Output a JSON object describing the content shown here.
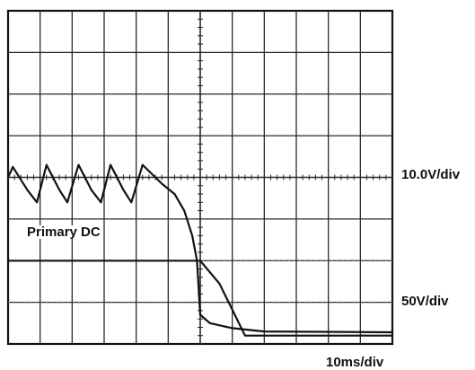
{
  "chart_data": {
    "type": "line",
    "title": "",
    "grid": true,
    "divisions": {
      "horizontal": 12,
      "vertical": 8
    },
    "scales": {
      "ch1": "10.0V/div",
      "ch2": "50V/div",
      "time": "10ms/div"
    },
    "annotations": [
      "Primary DC"
    ],
    "series": [
      {
        "channel": "ch1",
        "unit": "div",
        "x": [
          0,
          6.0,
          6.6,
          7.4,
          12
        ],
        "y": [
          -2,
          -2,
          -2.55,
          -3.8,
          -3.8
        ]
      },
      {
        "name": "Primary DC",
        "channel": "ch2",
        "unit": "div",
        "x": [
          0,
          0.15,
          0.6,
          0.9,
          1.2,
          1.6,
          1.85,
          2.2,
          2.6,
          2.9,
          3.2,
          3.6,
          3.85,
          4.2,
          4.8,
          5.2,
          5.5,
          5.75,
          5.9,
          6.0,
          6.3,
          7.0,
          8.0,
          12
        ],
        "y": [
          0,
          0.25,
          -0.3,
          -0.6,
          0.3,
          -0.3,
          -0.6,
          0.3,
          -0.3,
          -0.6,
          0.3,
          -0.3,
          -0.6,
          0.3,
          -0.15,
          -0.4,
          -0.8,
          -1.4,
          -2.0,
          -3.3,
          -3.5,
          -3.62,
          -3.7,
          -3.72
        ]
      }
    ],
    "reference_markers": {
      "ch1": -2,
      "ch2": -3
    }
  }
}
